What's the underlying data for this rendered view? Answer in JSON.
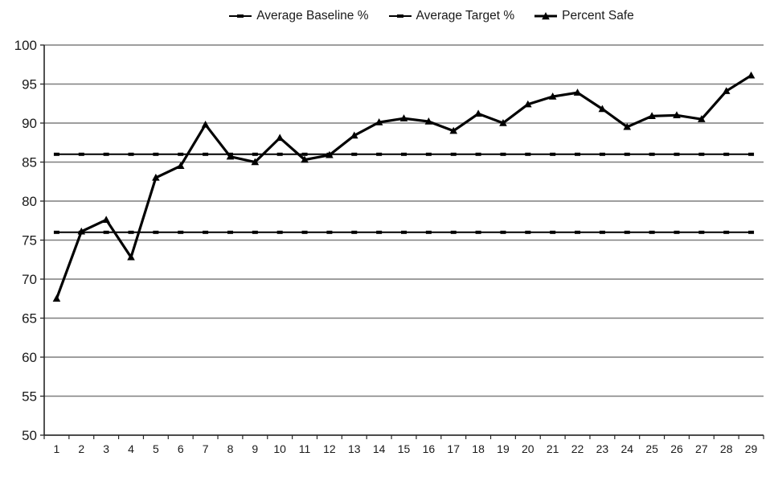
{
  "chart_data": {
    "type": "line",
    "title": "",
    "xlabel": "",
    "ylabel": "",
    "ylim": [
      50,
      100
    ],
    "ytick_step": 5,
    "y_ticks": [
      50,
      55,
      60,
      65,
      70,
      75,
      80,
      85,
      90,
      95,
      100
    ],
    "x_labels": [
      "1",
      "2",
      "3",
      "4",
      "5",
      "6",
      "7",
      "8",
      "9",
      "10",
      "11",
      "12",
      "13",
      "14",
      "15",
      "16",
      "17",
      "18",
      "19",
      "20",
      "21",
      "22",
      "23",
      "24",
      "25",
      "26",
      "27",
      "28",
      "29"
    ],
    "grid": "horizontal",
    "legend_position": "top-center",
    "colors": {
      "series_line": "#000000",
      "grid_line": "#7f7f7f",
      "axis_line": "#262626",
      "text": "#1a1a1a",
      "background": "#ffffff"
    },
    "series": [
      {
        "name": "Average Baseline %",
        "marker": "dash",
        "color": "#000000",
        "line_width": 2,
        "constant_value": 76,
        "values": [
          76,
          76,
          76,
          76,
          76,
          76,
          76,
          76,
          76,
          76,
          76,
          76,
          76,
          76,
          76,
          76,
          76,
          76,
          76,
          76,
          76,
          76,
          76,
          76,
          76,
          76,
          76,
          76,
          76
        ]
      },
      {
        "name": "Average Target %",
        "marker": "dash",
        "color": "#000000",
        "line_width": 2,
        "constant_value": 86,
        "values": [
          86,
          86,
          86,
          86,
          86,
          86,
          86,
          86,
          86,
          86,
          86,
          86,
          86,
          86,
          86,
          86,
          86,
          86,
          86,
          86,
          86,
          86,
          86,
          86,
          86,
          86,
          86,
          86,
          86
        ]
      },
      {
        "name": "Percent Safe",
        "marker": "triangle",
        "color": "#000000",
        "line_width": 3.2,
        "values": [
          67.5,
          76.1,
          77.6,
          72.8,
          83.0,
          84.5,
          89.8,
          85.7,
          85.0,
          88.1,
          85.3,
          85.9,
          88.4,
          90.1,
          90.6,
          90.2,
          89.0,
          91.2,
          90.0,
          92.4,
          93.4,
          93.9,
          91.8,
          89.5,
          90.9,
          91.0,
          90.5,
          94.1,
          96.1
        ]
      }
    ]
  }
}
